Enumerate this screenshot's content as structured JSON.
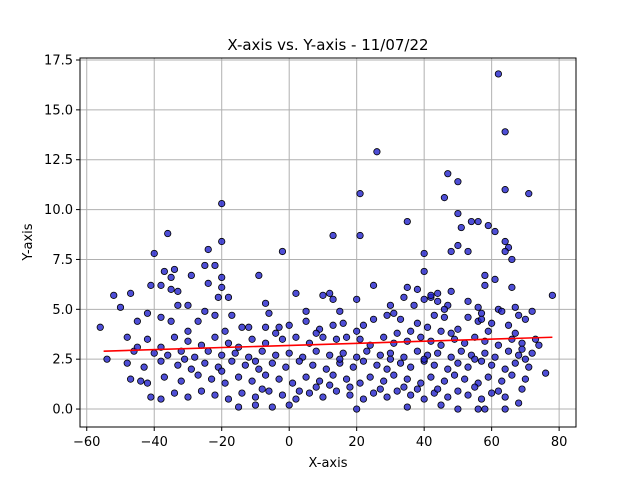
{
  "chart_data": {
    "type": "scatter",
    "title": "X-axis vs. Y-axis - 11/07/22",
    "xlabel": "X-axis",
    "ylabel": "Y-axis",
    "xlim": [
      -62,
      85
    ],
    "ylim": [
      -0.9,
      17.6
    ],
    "xticks": [
      -60,
      -40,
      -20,
      0,
      20,
      40,
      60,
      80
    ],
    "xtick_labels": [
      "−60",
      "−40",
      "−20",
      "0",
      "20",
      "40",
      "60",
      "80"
    ],
    "yticks": [
      0.0,
      2.5,
      5.0,
      7.5,
      10.0,
      12.5,
      15.0,
      17.5
    ],
    "ytick_labels": [
      "0.0",
      "2.5",
      "5.0",
      "7.5",
      "10.0",
      "12.5",
      "15.0",
      "17.5"
    ],
    "grid": true,
    "colors": {
      "marker_fill": "#2222cc",
      "marker_edge": "#000000",
      "regression_line": "#ff0000",
      "grid": "#b0b0b0"
    },
    "regression": {
      "x": [
        -55,
        78
      ],
      "y": [
        2.9,
        3.6
      ]
    },
    "points": [
      [
        62,
        16.8
      ],
      [
        64,
        13.9
      ],
      [
        26,
        12.9
      ],
      [
        47,
        11.8
      ],
      [
        50,
        11.4
      ],
      [
        64,
        11.0
      ],
      [
        71,
        10.8
      ],
      [
        21,
        10.8
      ],
      [
        46,
        10.6
      ],
      [
        -20,
        10.3
      ],
      [
        50,
        9.8
      ],
      [
        54,
        9.4
      ],
      [
        56,
        9.4
      ],
      [
        35,
        9.4
      ],
      [
        51,
        9.1
      ],
      [
        59,
        9.2
      ],
      [
        61,
        8.9
      ],
      [
        -36,
        8.8
      ],
      [
        13,
        8.7
      ],
      [
        21,
        8.7
      ],
      [
        -20,
        8.4
      ],
      [
        64,
        8.4
      ],
      [
        65,
        8.1
      ],
      [
        50,
        8.2
      ],
      [
        -24,
        8.0
      ],
      [
        -2,
        7.9
      ],
      [
        -40,
        7.8
      ],
      [
        40,
        7.8
      ],
      [
        48,
        7.9
      ],
      [
        53,
        7.9
      ],
      [
        64,
        7.9
      ],
      [
        66,
        7.5
      ],
      [
        -25,
        7.2
      ],
      [
        -22,
        7.2
      ],
      [
        -34,
        7.0
      ],
      [
        -37,
        6.9
      ],
      [
        -29,
        6.7
      ],
      [
        -9,
        6.7
      ],
      [
        58,
        6.7
      ],
      [
        -35,
        6.6
      ],
      [
        -20,
        6.6
      ],
      [
        -41,
        6.2
      ],
      [
        -38,
        6.2
      ],
      [
        -35,
        6.0
      ],
      [
        -33,
        5.9
      ],
      [
        -20,
        6.1
      ],
      [
        -24,
        6.3
      ],
      [
        38,
        6.0
      ],
      [
        44,
        5.8
      ],
      [
        48,
        5.9
      ],
      [
        58,
        6.2
      ],
      [
        61,
        6.5
      ],
      [
        -52,
        5.7
      ],
      [
        -47,
        5.8
      ],
      [
        -30,
        5.2
      ],
      [
        -33,
        5.2
      ],
      [
        -21,
        5.6
      ],
      [
        -18,
        5.6
      ],
      [
        -7,
        5.3
      ],
      [
        2,
        5.8
      ],
      [
        10,
        5.7
      ],
      [
        12,
        5.8
      ],
      [
        13,
        5.5
      ],
      [
        20,
        5.5
      ],
      [
        30,
        5.2
      ],
      [
        34,
        5.6
      ],
      [
        37,
        5.2
      ],
      [
        40,
        5.5
      ],
      [
        42,
        5.6
      ],
      [
        44,
        5.4
      ],
      [
        47,
        5.2
      ],
      [
        56,
        5.1
      ],
      [
        62,
        5.0
      ],
      [
        67,
        5.1
      ],
      [
        72,
        4.9
      ],
      [
        78,
        5.7
      ],
      [
        -56,
        4.1
      ],
      [
        -50,
        5.1
      ],
      [
        -45,
        4.4
      ],
      [
        -42,
        4.8
      ],
      [
        -38,
        4.6
      ],
      [
        -35,
        4.4
      ],
      [
        -27,
        4.4
      ],
      [
        -25,
        4.9
      ],
      [
        -22,
        4.7
      ],
      [
        -17,
        4.7
      ],
      [
        -14,
        4.1
      ],
      [
        -12,
        4.1
      ],
      [
        -7,
        4.1
      ],
      [
        -3,
        4.1
      ],
      [
        0,
        4.2
      ],
      [
        5,
        4.4
      ],
      [
        9,
        4.0
      ],
      [
        13,
        4.2
      ],
      [
        16,
        4.3
      ],
      [
        22,
        4.2
      ],
      [
        25,
        4.5
      ],
      [
        29,
        4.7
      ],
      [
        33,
        4.5
      ],
      [
        38,
        4.3
      ],
      [
        41,
        4.1
      ],
      [
        43,
        4.7
      ],
      [
        46,
        4.6
      ],
      [
        53,
        4.6
      ],
      [
        56,
        4.4
      ],
      [
        60,
        4.3
      ],
      [
        65,
        4.2
      ],
      [
        68,
        4.7
      ],
      [
        70,
        4.5
      ],
      [
        -48,
        3.6
      ],
      [
        -42,
        3.5
      ],
      [
        -38,
        3.1
      ],
      [
        -34,
        3.6
      ],
      [
        -30,
        3.4
      ],
      [
        -26,
        3.2
      ],
      [
        -22,
        3.6
      ],
      [
        -18,
        3.3
      ],
      [
        -15,
        3.1
      ],
      [
        -11,
        3.5
      ],
      [
        -7,
        3.3
      ],
      [
        -2,
        3.5
      ],
      [
        2,
        3.6
      ],
      [
        6,
        3.3
      ],
      [
        10,
        3.6
      ],
      [
        14,
        3.5
      ],
      [
        17,
        3.6
      ],
      [
        21,
        3.5
      ],
      [
        24,
        3.2
      ],
      [
        28,
        3.6
      ],
      [
        31,
        3.3
      ],
      [
        35,
        3.4
      ],
      [
        39,
        3.6
      ],
      [
        42,
        3.4
      ],
      [
        45,
        3.2
      ],
      [
        49,
        3.5
      ],
      [
        52,
        3.3
      ],
      [
        55,
        3.6
      ],
      [
        58,
        3.4
      ],
      [
        62,
        3.2
      ],
      [
        66,
        3.5
      ],
      [
        69,
        3.3
      ],
      [
        73,
        3.5
      ],
      [
        -46,
        2.9
      ],
      [
        -40,
        2.8
      ],
      [
        -36,
        2.7
      ],
      [
        -32,
        2.9
      ],
      [
        -28,
        2.6
      ],
      [
        -24,
        2.9
      ],
      [
        -20,
        2.7
      ],
      [
        -16,
        2.8
      ],
      [
        -12,
        2.6
      ],
      [
        -8,
        2.9
      ],
      [
        -4,
        2.7
      ],
      [
        0,
        2.8
      ],
      [
        4,
        2.6
      ],
      [
        8,
        2.9
      ],
      [
        12,
        2.7
      ],
      [
        16,
        2.8
      ],
      [
        20,
        2.6
      ],
      [
        23,
        2.9
      ],
      [
        27,
        2.7
      ],
      [
        30,
        2.8
      ],
      [
        34,
        2.6
      ],
      [
        38,
        2.9
      ],
      [
        41,
        2.7
      ],
      [
        44,
        2.8
      ],
      [
        48,
        2.6
      ],
      [
        51,
        2.9
      ],
      [
        54,
        2.7
      ],
      [
        58,
        2.8
      ],
      [
        61,
        2.6
      ],
      [
        65,
        2.9
      ],
      [
        68,
        2.7
      ],
      [
        72,
        2.8
      ],
      [
        -48,
        2.3
      ],
      [
        -43,
        2.1
      ],
      [
        -38,
        2.4
      ],
      [
        -33,
        2.2
      ],
      [
        -29,
        2.0
      ],
      [
        -25,
        2.3
      ],
      [
        -21,
        2.1
      ],
      [
        -17,
        2.4
      ],
      [
        -13,
        2.2
      ],
      [
        -9,
        2.0
      ],
      [
        -5,
        2.3
      ],
      [
        -1,
        2.1
      ],
      [
        3,
        2.4
      ],
      [
        7,
        2.2
      ],
      [
        11,
        2.0
      ],
      [
        15,
        2.3
      ],
      [
        19,
        2.1
      ],
      [
        22,
        2.4
      ],
      [
        26,
        2.2
      ],
      [
        29,
        2.0
      ],
      [
        33,
        2.3
      ],
      [
        36,
        2.1
      ],
      [
        40,
        2.4
      ],
      [
        43,
        2.2
      ],
      [
        47,
        2.0
      ],
      [
        50,
        2.3
      ],
      [
        53,
        2.1
      ],
      [
        57,
        2.4
      ],
      [
        60,
        2.2
      ],
      [
        64,
        2.0
      ],
      [
        67,
        2.3
      ],
      [
        71,
        2.1
      ],
      [
        -47,
        1.5
      ],
      [
        -42,
        1.3
      ],
      [
        -37,
        1.6
      ],
      [
        -32,
        1.4
      ],
      [
        -27,
        1.7
      ],
      [
        -23,
        1.5
      ],
      [
        -19,
        1.3
      ],
      [
        -15,
        1.6
      ],
      [
        -11,
        1.4
      ],
      [
        -7,
        1.7
      ],
      [
        -3,
        1.5
      ],
      [
        1,
        1.3
      ],
      [
        5,
        1.6
      ],
      [
        9,
        1.4
      ],
      [
        13,
        1.7
      ],
      [
        17,
        1.5
      ],
      [
        21,
        1.3
      ],
      [
        24,
        1.6
      ],
      [
        28,
        1.4
      ],
      [
        31,
        1.7
      ],
      [
        35,
        1.5
      ],
      [
        39,
        1.3
      ],
      [
        42,
        1.6
      ],
      [
        46,
        1.4
      ],
      [
        49,
        1.7
      ],
      [
        52,
        1.5
      ],
      [
        56,
        1.3
      ],
      [
        59,
        1.6
      ],
      [
        63,
        1.4
      ],
      [
        66,
        1.7
      ],
      [
        70,
        1.5
      ],
      [
        76,
        1.8
      ],
      [
        -41,
        0.6
      ],
      [
        -38,
        0.5
      ],
      [
        -34,
        0.8
      ],
      [
        -30,
        0.6
      ],
      [
        -26,
        0.9
      ],
      [
        -22,
        0.7
      ],
      [
        -18,
        0.5
      ],
      [
        -14,
        0.8
      ],
      [
        -10,
        0.6
      ],
      [
        -6,
        0.9
      ],
      [
        -2,
        0.7
      ],
      [
        2,
        0.5
      ],
      [
        6,
        0.8
      ],
      [
        10,
        0.6
      ],
      [
        14,
        0.9
      ],
      [
        18,
        0.7
      ],
      [
        22,
        0.5
      ],
      [
        25,
        0.8
      ],
      [
        29,
        0.6
      ],
      [
        32,
        0.9
      ],
      [
        36,
        0.7
      ],
      [
        40,
        0.5
      ],
      [
        43,
        0.8
      ],
      [
        47,
        0.6
      ],
      [
        50,
        0.9
      ],
      [
        53,
        0.7
      ],
      [
        57,
        0.5
      ],
      [
        60,
        0.8
      ],
      [
        64,
        0.6
      ],
      [
        -15,
        0.1
      ],
      [
        -10,
        0.2
      ],
      [
        -5,
        0.1
      ],
      [
        0,
        0.2
      ],
      [
        20,
        0.0
      ],
      [
        35,
        0.1
      ],
      [
        45,
        0.2
      ],
      [
        50,
        0.0
      ],
      [
        56,
        0.0
      ],
      [
        58,
        0.0
      ],
      [
        64,
        0.0
      ],
      [
        68,
        0.3
      ],
      [
        -44,
        1.4
      ],
      [
        -20,
        1.9
      ],
      [
        -8,
        1.0
      ],
      [
        3,
        0.9
      ],
      [
        8,
        1.1
      ],
      [
        12,
        1.2
      ],
      [
        18,
        1.1
      ],
      [
        27,
        1.0
      ],
      [
        34,
        1.1
      ],
      [
        38,
        1.0
      ],
      [
        44,
        1.0
      ],
      [
        55,
        1.1
      ],
      [
        62,
        0.9
      ],
      [
        69,
        1.0
      ],
      [
        -6,
        4.8
      ],
      [
        5,
        4.9
      ],
      [
        15,
        4.9
      ],
      [
        31,
        4.8
      ],
      [
        46,
        5.0
      ],
      [
        57,
        4.8
      ],
      [
        63,
        4.9
      ],
      [
        -45,
        3.1
      ],
      [
        -30,
        3.9
      ],
      [
        -19,
        3.9
      ],
      [
        -4,
        3.8
      ],
      [
        8,
        3.8
      ],
      [
        20,
        3.9
      ],
      [
        32,
        3.8
      ],
      [
        36,
        3.9
      ],
      [
        48,
        3.8
      ],
      [
        59,
        3.9
      ],
      [
        67,
        3.8
      ],
      [
        74,
        3.2
      ],
      [
        -54,
        2.5
      ],
      [
        -31,
        2.5
      ],
      [
        -10,
        2.4
      ],
      [
        15,
        2.5
      ],
      [
        30,
        2.5
      ],
      [
        40,
        2.5
      ],
      [
        55,
        2.5
      ],
      [
        70,
        2.5
      ],
      [
        25,
        6.2
      ],
      [
        35,
        6.1
      ],
      [
        40,
        6.9
      ],
      [
        57,
        4.5
      ],
      [
        42,
        5.7
      ],
      [
        45,
        3.9
      ],
      [
        50,
        4.0
      ],
      [
        53,
        5.4
      ],
      [
        66,
        6.1
      ],
      [
        69,
        3.0
      ]
    ]
  }
}
